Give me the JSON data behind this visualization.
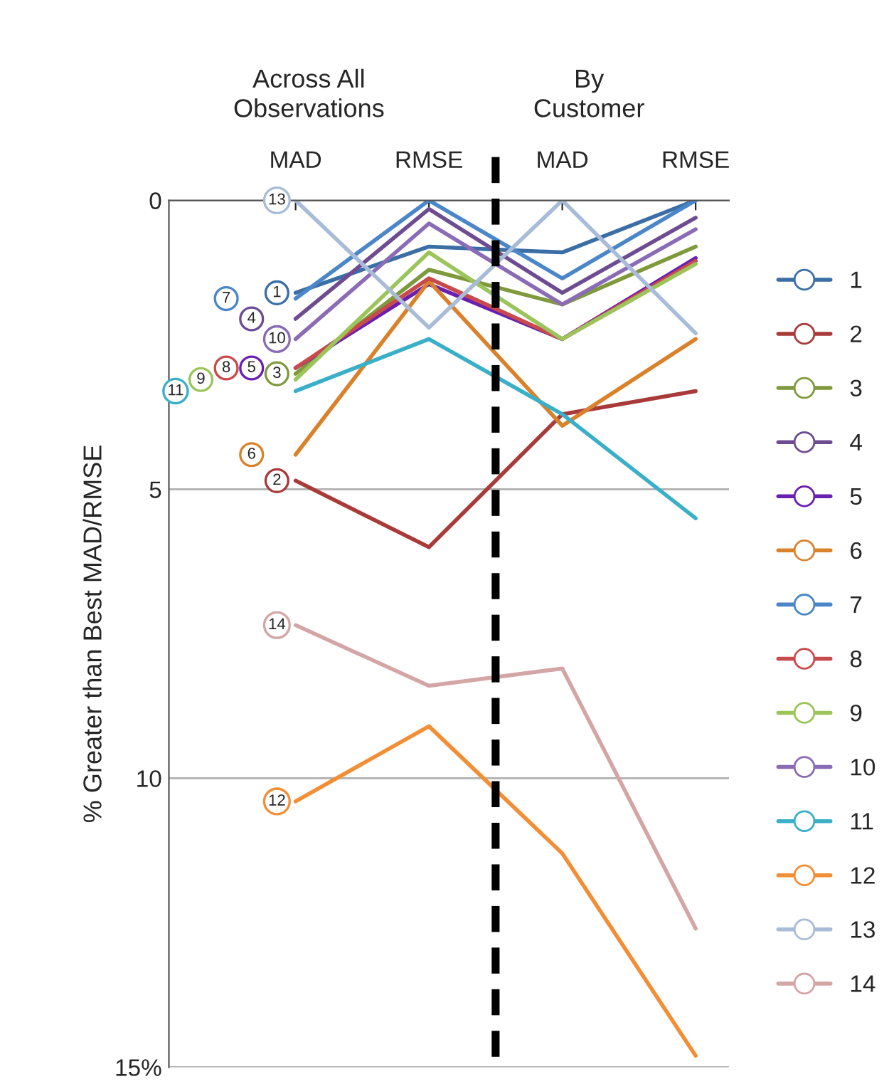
{
  "chart_data": {
    "type": "line",
    "categories": [
      "MAD",
      "RMSE",
      "MAD",
      "RMSE"
    ],
    "ylabel": "% Greater than Best MAD/RMSE",
    "annotations": [
      "Across All\nObservations",
      "By\nCustomer"
    ],
    "ylim": [
      15,
      0
    ],
    "yticks": [
      0,
      5,
      10,
      {
        "value": 15,
        "label": "15%"
      }
    ],
    "grid": "y",
    "legend": "right",
    "line_style": "solid",
    "series": [
      {
        "name": "1",
        "color": "#3a6ea5",
        "values": [
          1.6,
          0.8,
          0.9,
          0
        ]
      },
      {
        "name": "2",
        "color": "#a93a3a",
        "values": [
          4.85,
          6.0,
          3.7,
          3.3
        ]
      },
      {
        "name": "3",
        "color": "#7f9a3c",
        "values": [
          3.0,
          1.2,
          1.8,
          0.8
        ]
      },
      {
        "name": "4",
        "color": "#6d4c91",
        "values": [
          2.05,
          0.15,
          1.6,
          0.3
        ]
      },
      {
        "name": "5",
        "color": "#6a1fb0",
        "values": [
          2.9,
          1.45,
          2.4,
          1.0
        ]
      },
      {
        "name": "6",
        "color": "#d9822b",
        "values": [
          4.4,
          1.4,
          3.9,
          2.4
        ]
      },
      {
        "name": "7",
        "color": "#4a86c8",
        "values": [
          1.7,
          0,
          1.35,
          0
        ]
      },
      {
        "name": "8",
        "color": "#c84a4a",
        "values": [
          2.9,
          1.35,
          2.4,
          1.05
        ]
      },
      {
        "name": "9",
        "color": "#9bc45a",
        "values": [
          3.1,
          0.9,
          2.4,
          1.1
        ]
      },
      {
        "name": "10",
        "color": "#8a6bb5",
        "values": [
          2.4,
          0.4,
          1.8,
          0.5
        ]
      },
      {
        "name": "11",
        "color": "#3aafc8",
        "values": [
          3.3,
          2.4,
          3.7,
          5.5
        ]
      },
      {
        "name": "12",
        "color": "#f28e35",
        "values": [
          10.4,
          9.1,
          11.3,
          14.8
        ]
      },
      {
        "name": "13",
        "color": "#a8bcd8",
        "values": [
          0,
          2.2,
          0,
          2.3
        ]
      },
      {
        "name": "14",
        "color": "#d4a5a5",
        "values": [
          7.35,
          8.4,
          8.1,
          12.6
        ]
      }
    ]
  }
}
